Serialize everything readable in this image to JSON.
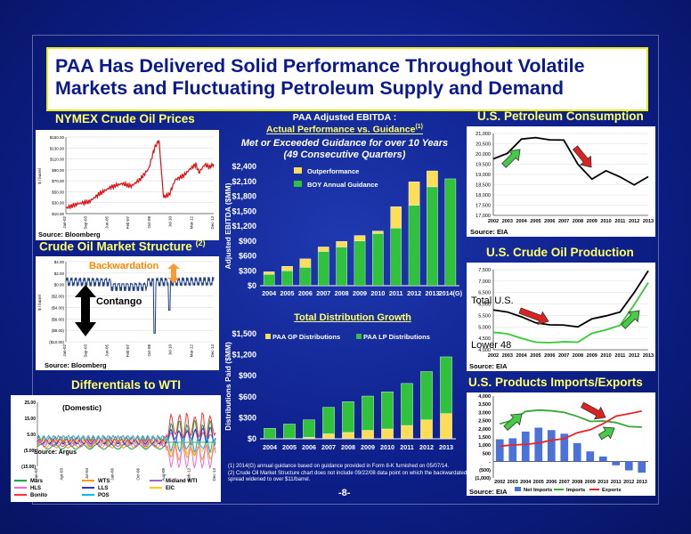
{
  "title": "PAA Has Delivered Solid Performance Throughout Volatile Markets and Fluctuating Petroleum Supply and Demand",
  "title_lines": [
    "PAA Has Delivered Solid Performance Throughout Volatile",
    "Markets and Fluctuating Petroleum Supply and Demand"
  ],
  "page_number": "-8-",
  "footnotes": [
    "(1) 2014(G) annual guidance based on guidance provided in Form 8-K furnished on 05/07/14.",
    "(2) Crude Oil Market Structure chart does not include 09/22/08 data point on which the backwardated spread widened to over $11/barrel."
  ],
  "nymex": {
    "title": "NYMEX Crude Oil Prices",
    "source": "Source: Bloomberg",
    "y_ticks": [
      "$150.00",
      "$130.00",
      "$110.00",
      "$90.00",
      "$70.00",
      "$50.00",
      "$30.00",
      "$10.00"
    ],
    "x_ticks": [
      "Jan-02",
      "Sep-03",
      "Jun-05",
      "Feb-07",
      "Oct-08",
      "Jul-10",
      "Mar-12",
      "Dec-13"
    ],
    "ylabel": "$ / barrel"
  },
  "structure": {
    "title": "Crude Oil Market Structure",
    "title_sup": "(2)",
    "source": "Source: Bloomberg",
    "backwardation": "Backwardation",
    "contango": "Contango",
    "y_ticks": [
      "$4.00",
      "$2.00",
      "$0.00",
      "($2.00)",
      "($4.00)",
      "($6.00)",
      "($8.00)",
      "($10.00)"
    ],
    "x_ticks": [
      "Jan-02",
      "Sep-03",
      "Jun-05",
      "Feb-07",
      "Oct-08",
      "Jul-10",
      "Mar-12",
      "Dec-13"
    ],
    "ylabel": "$ / barrel"
  },
  "differentials": {
    "title": "Differentials to WTI",
    "note": "(Domestic)",
    "source": "Source: Argus",
    "y_ticks": [
      "25.00",
      "15.00",
      "5.00",
      "(5.00)",
      "(15.00)"
    ],
    "x_ticks": [
      "Jan-02",
      "Apr-03",
      "Jul-04",
      "Jan-06",
      "Oct-06",
      "Aug-08",
      "Feb-12",
      "Dec-13"
    ],
    "legend": [
      {
        "name": "Mars",
        "color": "#00aa44"
      },
      {
        "name": "WTS",
        "color": "#ff9900"
      },
      {
        "name": "Midland WTI",
        "color": "#9966cc"
      },
      {
        "name": "HLS",
        "color": "#ff66cc"
      },
      {
        "name": "LLS",
        "color": "#3333cc"
      },
      {
        "name": "EIC",
        "color": "#ffcc00"
      },
      {
        "name": "Bonito",
        "color": "#ff3333"
      },
      {
        "name": "POS",
        "color": "#00bbee"
      }
    ]
  },
  "ebitda": {
    "title_line1": "PAA Adjusted EBITDA :",
    "title_line2": "Actual Performance vs. Guidance",
    "title_sup": "(1)",
    "subtitle_line1": "Met or Exceeded Guidance for over 10 Years",
    "subtitle_line2": "(49 Consecutive Quarters)",
    "ylabel": "Adjusted EBITDA ($MM)",
    "y_ticks": [
      "$2,400",
      "$2,100",
      "$1,800",
      "$1,500",
      "$1,200",
      "$900",
      "$600",
      "$300",
      "$0"
    ]
  },
  "distribution": {
    "title": "Total Distribution Growth",
    "ylabel": "Distributions Paid ($MM)",
    "y_ticks": [
      "$1,500",
      "$1,200",
      "$900",
      "$600",
      "$300",
      "$0"
    ]
  },
  "consumption": {
    "title": "U.S. Petroleum Consumption",
    "source": "Source: EIA",
    "y_ticks": [
      "21,000",
      "20,500",
      "20,000",
      "19,500",
      "19,000",
      "18,500",
      "18,000",
      "17,500",
      "17,000"
    ],
    "x_ticks": [
      "2002",
      "2003",
      "2004",
      "2005",
      "2006",
      "2007",
      "2008",
      "2009",
      "2010",
      "2011",
      "2012",
      "2013"
    ]
  },
  "production": {
    "title": "U.S. Crude Oil Production",
    "source": "Source: EIA",
    "label_total": "Total U.S.",
    "label_lower48": "Lower 48",
    "y_ticks": [
      "7,500",
      "7,000",
      "6,500",
      "6,000",
      "5,500",
      "5,000",
      "4,500",
      "4,000"
    ],
    "x_ticks": [
      "2002",
      "2003",
      "2004",
      "2005",
      "2006",
      "2007",
      "2008",
      "2009",
      "2010",
      "2011",
      "2012",
      "2013"
    ]
  },
  "trade": {
    "title": "U.S. Products Imports/Exports",
    "source": "Source: EIA",
    "y_ticks": [
      "4,000",
      "3,500",
      "3,000",
      "2,500",
      "2,000",
      "1,500",
      "1,000",
      "500",
      "-",
      "(500)",
      "(1,000)"
    ],
    "x_ticks": [
      "2002",
      "2003",
      "2004",
      "2005",
      "2006",
      "2007",
      "2008",
      "2009",
      "2010",
      "2011",
      "2012",
      "2013"
    ]
  },
  "chart_data": [
    {
      "type": "bar",
      "title": "PAA Adjusted EBITDA : Actual Performance vs. Guidance",
      "ylabel": "Adjusted EBITDA ($MM)",
      "ylim": [
        0,
        2400
      ],
      "categories": [
        "2004",
        "2005",
        "2006",
        "2007",
        "2008",
        "2009",
        "2010",
        "2011",
        "2012",
        "2013",
        "2014(G)"
      ],
      "series": [
        {
          "name": "BOY Annual Guidance",
          "color": "#2fc23a",
          "values": [
            230,
            300,
            370,
            690,
            780,
            900,
            1050,
            1160,
            1620,
            1990,
            2150
          ]
        },
        {
          "name": "Outperformance",
          "color": "#ffdd55",
          "values": [
            50,
            90,
            170,
            90,
            110,
            110,
            50,
            430,
            470,
            320,
            0
          ]
        }
      ]
    },
    {
      "type": "bar",
      "title": "Total Distribution Growth",
      "ylabel": "Distributions Paid ($MM)",
      "ylim": [
        0,
        1500
      ],
      "categories": [
        "2004",
        "2005",
        "2006",
        "2007",
        "2008",
        "2009",
        "2010",
        "2011",
        "2012",
        "2013"
      ],
      "series": [
        {
          "name": "PAA GP Distributions",
          "color": "#ffdd55",
          "values": [
            0,
            5,
            20,
            70,
            90,
            120,
            140,
            190,
            270,
            360
          ]
        },
        {
          "name": "PAA LP Distributions",
          "color": "#2fc23a",
          "values": [
            150,
            205,
            250,
            380,
            440,
            490,
            530,
            600,
            690,
            810
          ]
        }
      ]
    },
    {
      "type": "line",
      "title": "U.S. Petroleum Consumption",
      "ylim": [
        17000,
        21000
      ],
      "x": [
        "2002",
        "2003",
        "2004",
        "2005",
        "2006",
        "2007",
        "2008",
        "2009",
        "2010",
        "2011",
        "2012",
        "2013"
      ],
      "series": [
        {
          "color": "#000000",
          "values": [
            19760,
            20030,
            20730,
            20800,
            20690,
            20680,
            19500,
            18770,
            19180,
            18880,
            18490,
            18890
          ]
        }
      ]
    },
    {
      "type": "line",
      "title": "U.S. Crude Oil Production",
      "ylim": [
        4000,
        7500
      ],
      "x": [
        "2002",
        "2003",
        "2004",
        "2005",
        "2006",
        "2007",
        "2008",
        "2009",
        "2010",
        "2011",
        "2012",
        "2013"
      ],
      "series": [
        {
          "name": "Total U.S.",
          "color": "#000000",
          "values": [
            5740,
            5650,
            5440,
            5180,
            5090,
            5080,
            5000,
            5350,
            5480,
            5650,
            6500,
            7450
          ]
        },
        {
          "name": "Lower 48",
          "color": "#33cc33",
          "values": [
            4760,
            4700,
            4500,
            4330,
            4310,
            4350,
            4330,
            4720,
            4870,
            5070,
            5970,
            6930
          ]
        }
      ]
    },
    {
      "type": "bar",
      "title": "U.S. Products Imports/Exports",
      "ylim": [
        -1000,
        4000
      ],
      "categories": [
        "2002",
        "2003",
        "2004",
        "2005",
        "2006",
        "2007",
        "2008",
        "2009",
        "2010",
        "2011",
        "2012",
        "2013"
      ],
      "series": [
        {
          "name": "Net Imports",
          "kind": "bar",
          "color": "#4a72d8",
          "values": [
            1360,
            1420,
            1830,
            2070,
            1920,
            1700,
            1130,
            620,
            310,
            -230,
            -540,
            -680
          ]
        },
        {
          "name": "Imports",
          "kind": "line",
          "color": "#33aa33",
          "values": [
            2300,
            2520,
            3060,
            3140,
            3100,
            3000,
            2760,
            2450,
            2480,
            2380,
            2140,
            2100
          ]
        },
        {
          "name": "Exports",
          "kind": "line",
          "color": "#ee2222",
          "values": [
            940,
            1010,
            1050,
            1130,
            1300,
            1400,
            1760,
            1940,
            2310,
            2770,
            2920,
            3080
          ]
        }
      ]
    }
  ]
}
